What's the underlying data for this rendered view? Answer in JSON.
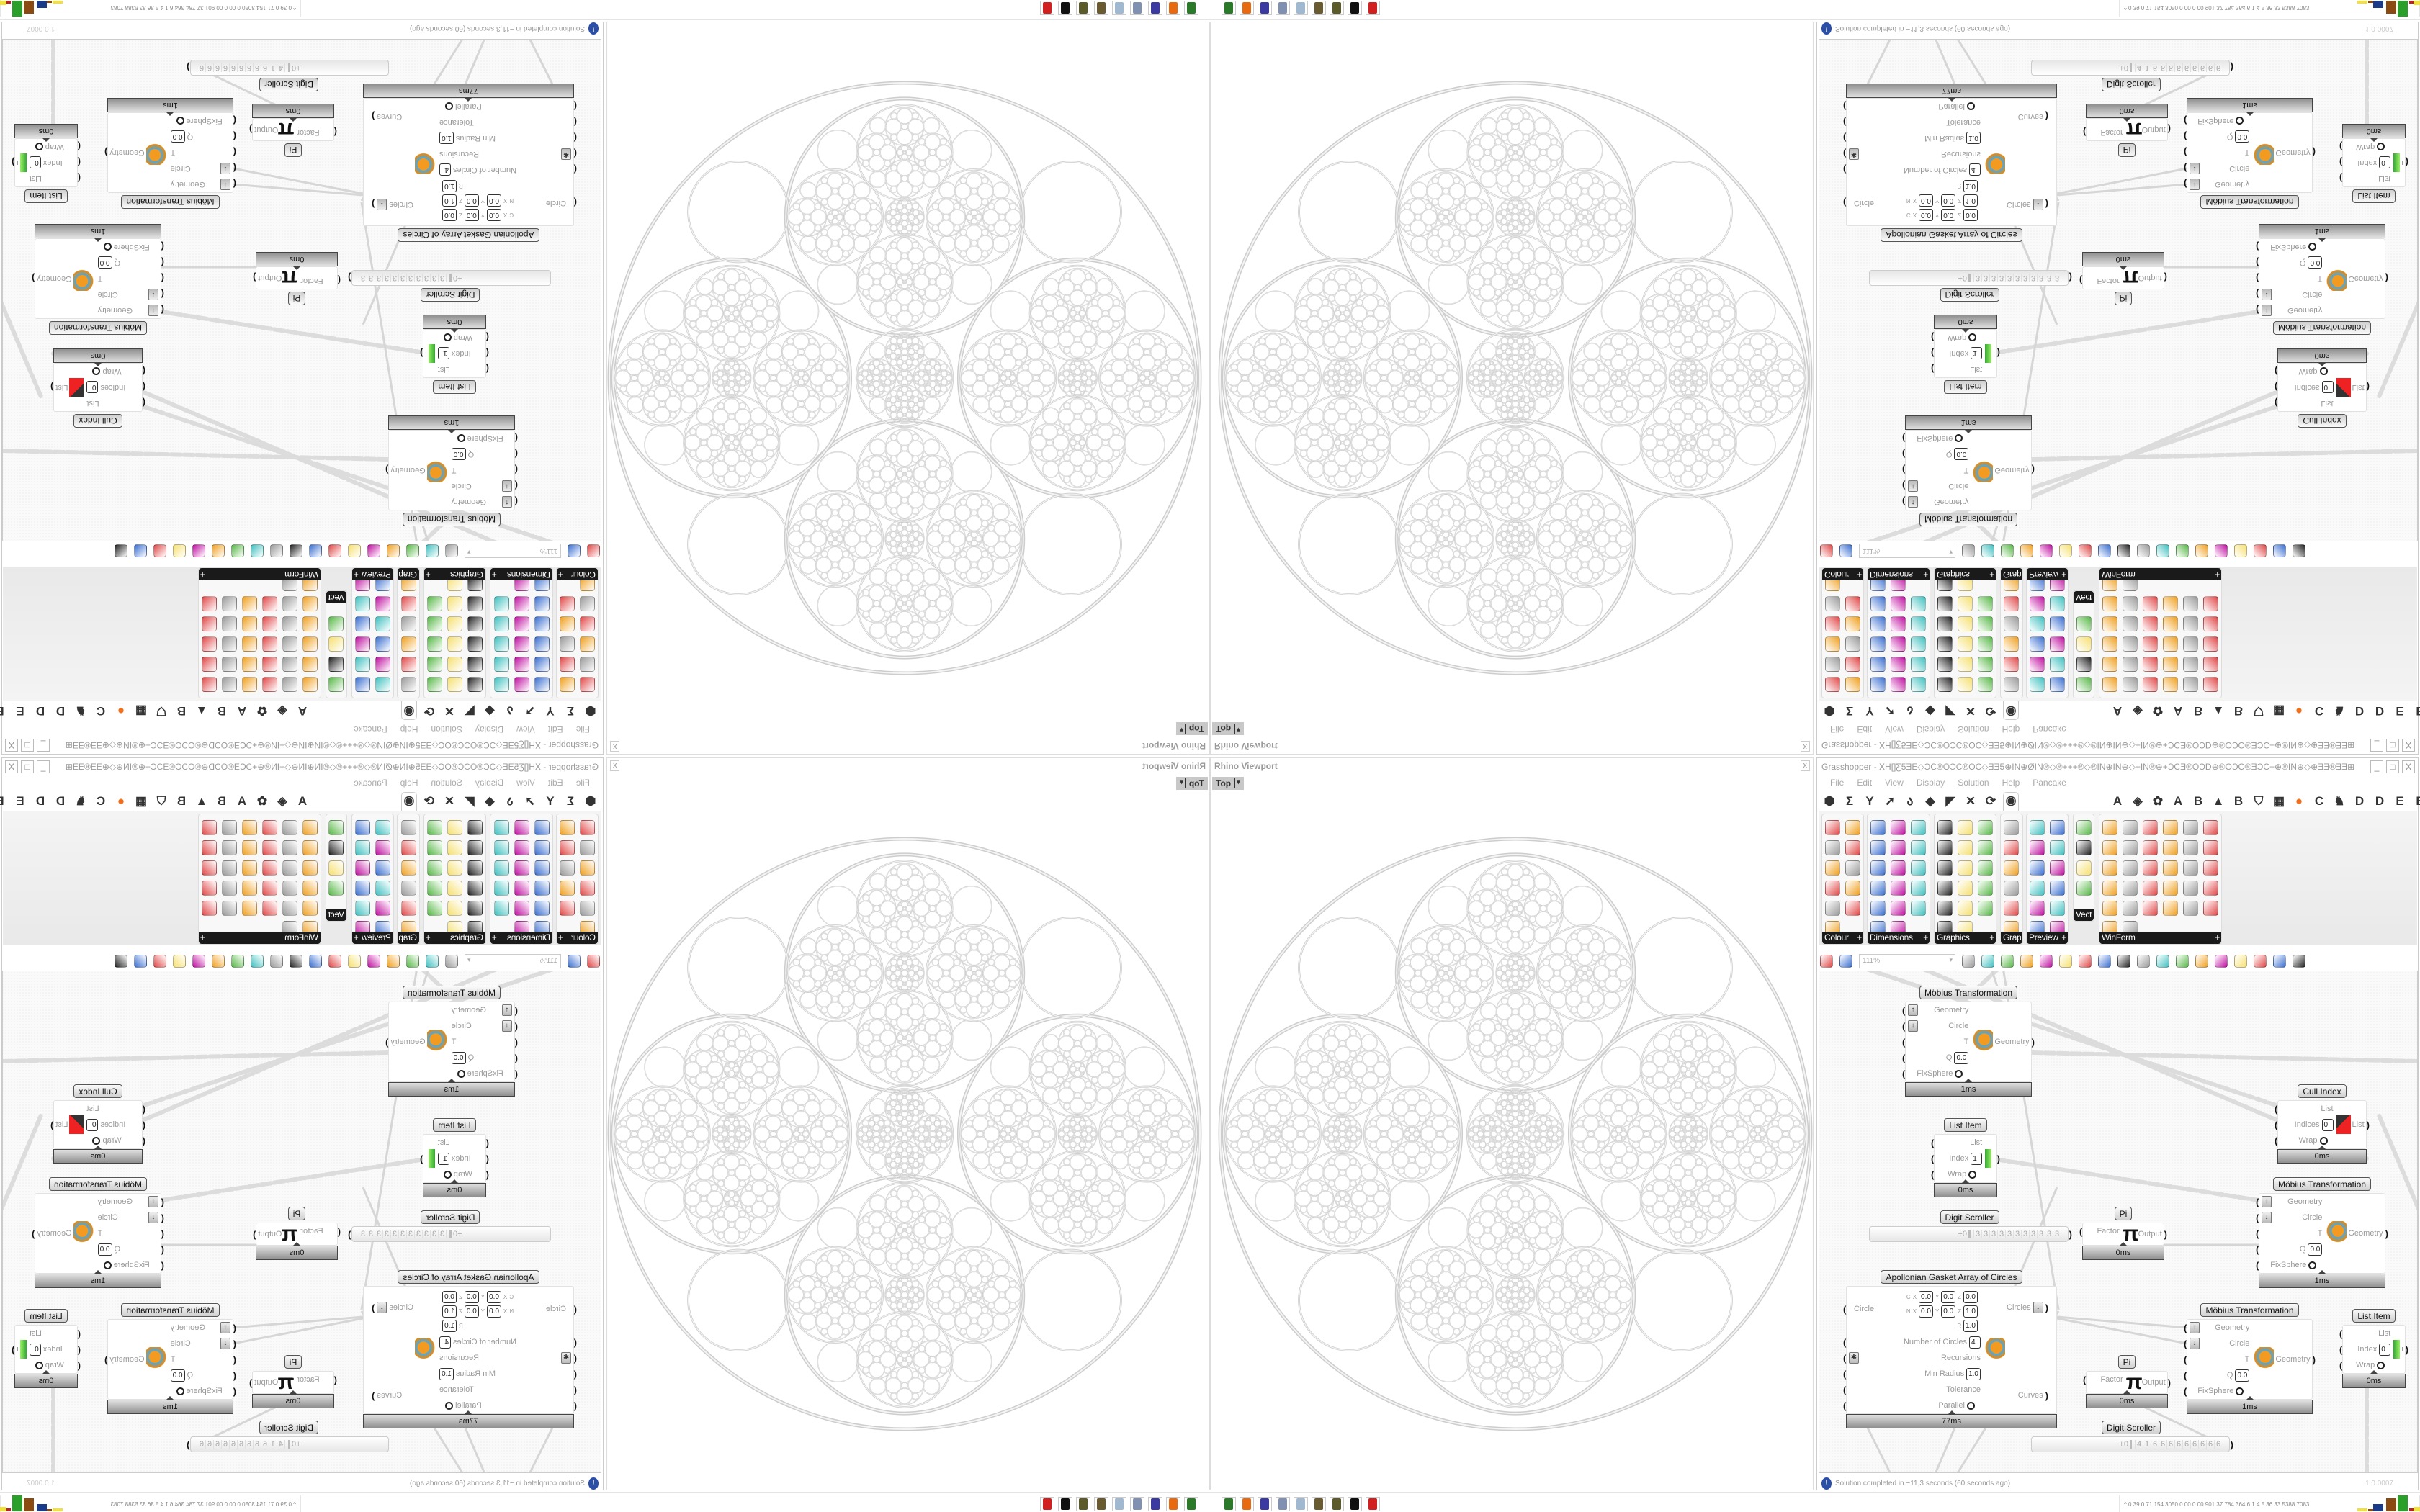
{
  "rhino": {
    "title": "Rhino Viewport",
    "close": "x",
    "view_button": "Top",
    "view_menu": "▾"
  },
  "grasshopper": {
    "title": "Grasshopper - XH[]Ƹ5ƎE◇ƆC®OƆC®OC◇ƎƎ5⊕IN⊕ØIN®◇®+++®◇®IN⊕IN⊕◇+IN®⊕+ƆCƎ®OƆD⊕®OƆO®ƎƆC+⊕®IN⊕◇⊕ƎƎ®ƎƎ⊞+Ƹ5+⊞ƎƎ⊕◇+®ƆƎƎ+⊕ƆC...",
    "window_buttons": [
      "_",
      "□",
      "X"
    ],
    "menu": [
      "File",
      "Edit",
      "View",
      "Display",
      "Solution",
      "Help",
      "Pancake"
    ],
    "tabs": [
      {
        "glyph": "⬢",
        "name": "params-tab"
      },
      {
        "glyph": "Σ",
        "name": "maths-tab"
      },
      {
        "glyph": "Y",
        "name": "sets-tab"
      },
      {
        "glyph": "➚",
        "name": "vector-tab"
      },
      {
        "glyph": "ა",
        "name": "curve-tab"
      },
      {
        "glyph": "◆",
        "name": "surface-tab"
      },
      {
        "glyph": "◤",
        "name": "mesh-tab"
      },
      {
        "glyph": "✕",
        "name": "intersect-tab"
      },
      {
        "glyph": "⟳",
        "name": "transform-tab"
      },
      {
        "glyph": "◉",
        "name": "display-tab",
        "selected": true
      },
      {
        "glyph": "A",
        "name": "plugin-a-tab"
      },
      {
        "glyph": "◈",
        "name": "leaf-tab"
      },
      {
        "glyph": "✿",
        "name": "plugin-tab"
      },
      {
        "glyph": "A",
        "name": "plugin-a2-tab"
      },
      {
        "glyph": "B",
        "name": "plugin-b-tab"
      },
      {
        "glyph": "▲",
        "name": "mountain-tab"
      },
      {
        "glyph": "B",
        "name": "plugin-b2-tab"
      },
      {
        "glyph": "⛉",
        "name": "shield-tab"
      },
      {
        "glyph": "▦",
        "name": "grid-tab"
      },
      {
        "glyph": "●",
        "name": "orange-tab",
        "color": "#f07020"
      },
      {
        "glyph": "C",
        "name": "plugin-c-tab"
      },
      {
        "glyph": "♞",
        "name": "bird-tab"
      },
      {
        "glyph": "D",
        "name": "plugin-d-tab"
      },
      {
        "glyph": "D",
        "name": "plugin-d2-tab"
      },
      {
        "glyph": "E",
        "name": "plugin-e-tab"
      },
      {
        "glyph": "E",
        "name": "plugin-e2-tab"
      },
      {
        "glyph": "⁙",
        "name": "dots-tab"
      },
      {
        "glyph": "E",
        "name": "plugin-e3-tab"
      }
    ],
    "icon_palette": [
      "#e04848",
      "#58b848",
      "#3a6fd0",
      "#f0a020",
      "#222222",
      "#c010a0",
      "#9a9a9a",
      "#f6e070",
      "#40c0c0"
    ],
    "ribbon_groups": [
      {
        "label": "Colour",
        "icons": [
          "colour-wheel",
          "gradient",
          "colour-rgb",
          "colour-cmyk",
          "colour-hsl-box",
          "hsl",
          "colour-sphere",
          "hsv",
          "colour-xyz",
          "spectrum",
          "colour-swatch"
        ]
      },
      {
        "label": "Dimensions",
        "icons": [
          "tag-delete",
          "aligned-dim",
          "angular-dim",
          "text-tag",
          "linear-dim",
          "box-dim",
          "swatch-magenta",
          "serial-dim",
          "marker-dim",
          "grid-dim",
          "angle-dim",
          "radial-dim",
          "arc-dim",
          "line-dim",
          "leader-dim",
          "diag-dim",
          "triangle-dim"
        ]
      },
      {
        "label": "Graphics",
        "icons": [
          "circle-grey",
          "text-t",
          "eye-ring",
          "dots-circle",
          "text-t-bold",
          "frame-ring",
          "blur-dot",
          "list-circle",
          "snowflake",
          "ring-c",
          "link-circle",
          "save-mountain",
          "sphere-grey",
          "vertices-circle",
          "save-snow",
          "sphere-dark",
          "mountain-circle"
        ]
      },
      {
        "label": "Grap..",
        "icons": [
          "histogram",
          "legend-bar",
          "pie-ring",
          "graph-line",
          "image-stack",
          "graph-chart"
        ]
      },
      {
        "label": "Preview",
        "icons": [
          "custom-preview",
          "camera",
          "sphere-material",
          "landscape",
          "blob-preview",
          "heart-blue",
          "blob-red",
          "heart-green",
          "gradient-square",
          "hearts",
          "sl-shader",
          "tree-image"
        ]
      },
      {
        "label": "Vect.",
        "icons": [
          "vector-order",
          "vector-path",
          "vector-arrows",
          "vector-field"
        ]
      },
      {
        "label": "WinForm",
        "icons": [
          "text-a",
          "checklist",
          "text-lines",
          "label",
          "chart-wave",
          "network",
          "hatch",
          "slider-h",
          "track-bar",
          "grid-green",
          "pie-chart",
          "panel",
          "checkbox",
          "list-lines",
          "tree-panel",
          "donut",
          "figure",
          "stack",
          "progress",
          "button-ok",
          "node-panel",
          "slider-v",
          "cursor-text",
          "button",
          "numeric",
          "list-box",
          "green-box",
          "calendar",
          "scroll",
          "toggle",
          "bars",
          "export"
        ]
      }
    ],
    "toolbar": {
      "zoom": "111%",
      "icons": [
        "open-file",
        "save-file",
        "zoom-field",
        "zoom-extents",
        "preview-eye",
        "pen-sketch",
        "bin",
        "gear-pin",
        "cha-plugin",
        "document-pen",
        "search-s",
        "box-pink",
        "bulb",
        "scissors-x",
        "cup-grey",
        "shield-outline",
        "red-gem",
        "teal-sphere",
        "green-leaf",
        "orange-ball",
        "blue-drop"
      ]
    },
    "nodes": {
      "mobius1": {
        "title": "Möbius Transformation",
        "inputs": [
          {
            "label": "Geometry",
            "icon": "↑"
          },
          {
            "label": "Circle",
            "icon": "↓"
          },
          {
            "label": "T"
          },
          {
            "label": "Q",
            "value": "0.0"
          },
          {
            "label": "FixSphere",
            "toggle": true
          }
        ],
        "outputs": [
          {
            "label": "Geometry"
          }
        ],
        "timing": "1ms"
      },
      "list1": {
        "title": "List Item",
        "inputs": [
          {
            "label": "List"
          },
          {
            "label": "Index",
            "value": "1"
          },
          {
            "label": "Wrap",
            "toggle": true
          }
        ],
        "outputs": [
          {
            "label": "i"
          }
        ],
        "timing": "0ms"
      },
      "cull": {
        "title": "Cull Index",
        "inputs": [
          {
            "label": "List"
          },
          {
            "label": "Indices",
            "value": "0"
          },
          {
            "label": "Wrap",
            "toggle": true
          }
        ],
        "outputs": [
          {
            "label": "List"
          }
        ],
        "timing": "0ms"
      },
      "mobius2": {
        "title": "Möbius Transformation",
        "inputs": [
          {
            "label": "Geometry",
            "icon": "↑"
          },
          {
            "label": "Circle",
            "icon": "↓"
          },
          {
            "label": "T"
          },
          {
            "label": "Q",
            "value": "0.0"
          },
          {
            "label": "FixSphere",
            "toggle": true
          }
        ],
        "outputs": [
          {
            "label": "Geometry"
          }
        ],
        "timing": "1ms"
      },
      "pi1": {
        "title": "Pi",
        "inputs": [
          {
            "label": "Factor"
          }
        ],
        "outputs": [
          {
            "label": "Output"
          }
        ],
        "symbol": "π",
        "timing": "0ms"
      },
      "apollo": {
        "title": "Apollonian Gasket Array of Circles",
        "circle": {
          "label": "Circle",
          "c": {
            "k": "C",
            "x": "0.0",
            "y": "0.0",
            "z": "0.0"
          },
          "n": {
            "k": "N",
            "x": "0.0",
            "y": "0.0",
            "z": "1.0"
          },
          "r": {
            "k": "R",
            "v": "1.0"
          }
        },
        "inputs": [
          {
            "label": "Number of Circles",
            "value": "4"
          },
          {
            "label": "Recursions",
            "icon": "✱"
          },
          {
            "label": "Min Radius",
            "value": "1.0"
          },
          {
            "label": "Tolerance"
          },
          {
            "label": "Parallel",
            "toggle": true
          }
        ],
        "outputs": [
          {
            "label": "Circles",
            "icon": "↓"
          },
          {
            "label": "Curves"
          }
        ],
        "timing": "77ms"
      },
      "mobius3": {
        "title": "Möbius Transformation",
        "inputs": [
          {
            "label": "Geometry",
            "icon": "↑"
          },
          {
            "label": "Circle",
            "icon": "↓"
          },
          {
            "label": "T"
          },
          {
            "label": "Q",
            "value": "0.0"
          },
          {
            "label": "FixSphere",
            "toggle": true
          }
        ],
        "outputs": [
          {
            "label": "Geometry"
          }
        ],
        "timing": "1ms"
      },
      "pi2": {
        "title": "Pi",
        "inputs": [
          {
            "label": "Factor"
          }
        ],
        "outputs": [
          {
            "label": "Output"
          }
        ],
        "symbol": "π",
        "timing": "0ms"
      },
      "list2": {
        "title": "List Item",
        "inputs": [
          {
            "label": "List"
          },
          {
            "label": "Index",
            "value": "0"
          },
          {
            "label": "Wrap",
            "toggle": true
          }
        ],
        "outputs": [
          {
            "label": "i"
          }
        ],
        "timing": "0ms"
      }
    },
    "scrollers": {
      "digit1": {
        "title": "Digit Scroller",
        "sign": "+0",
        "digits": [
          "3",
          "3",
          "3",
          "3",
          "3",
          "3",
          "3",
          "3",
          "3",
          "3",
          "3"
        ]
      },
      "digit2": {
        "title": "Digit Scroller",
        "sign": "+0",
        "digits": [
          "4",
          "1",
          "6",
          "6",
          "6",
          "6",
          "6",
          "6",
          "6",
          "6",
          "6"
        ]
      }
    },
    "status": {
      "icon": "info-icon",
      "message": "Solution completed in ~11,3 seconds (60 seconds ago)",
      "version": "1.0.0007"
    }
  },
  "taskbar": {
    "apps": [
      {
        "name": "rhino-app",
        "color": "#2a7a2a"
      },
      {
        "name": "firefox-app",
        "color": "#e86a10"
      },
      {
        "name": "floppy-app",
        "color": "#3a3aa0"
      },
      {
        "name": "script-app",
        "color": "#8090b0"
      },
      {
        "name": "notepad-app",
        "color": "#a0b8d0"
      },
      {
        "name": "gear-app",
        "color": "#6a5a30"
      },
      {
        "name": "gear2-app",
        "color": "#5a5a2a"
      },
      {
        "name": "wolf-app",
        "color": "#111111"
      },
      {
        "name": "target-app",
        "color": "#d02020"
      }
    ],
    "stats": "0.39 0.71 154 3050 0.00 0.00 901 37 784 364 6.1 4.5 36 33 5388 7083",
    "stats_toggle": "^",
    "meter_colors": [
      "#f0e040",
      "#8a4a10",
      "#1a3a8a",
      "#8a4a10",
      "#2aa02a",
      "#c02020"
    ]
  }
}
